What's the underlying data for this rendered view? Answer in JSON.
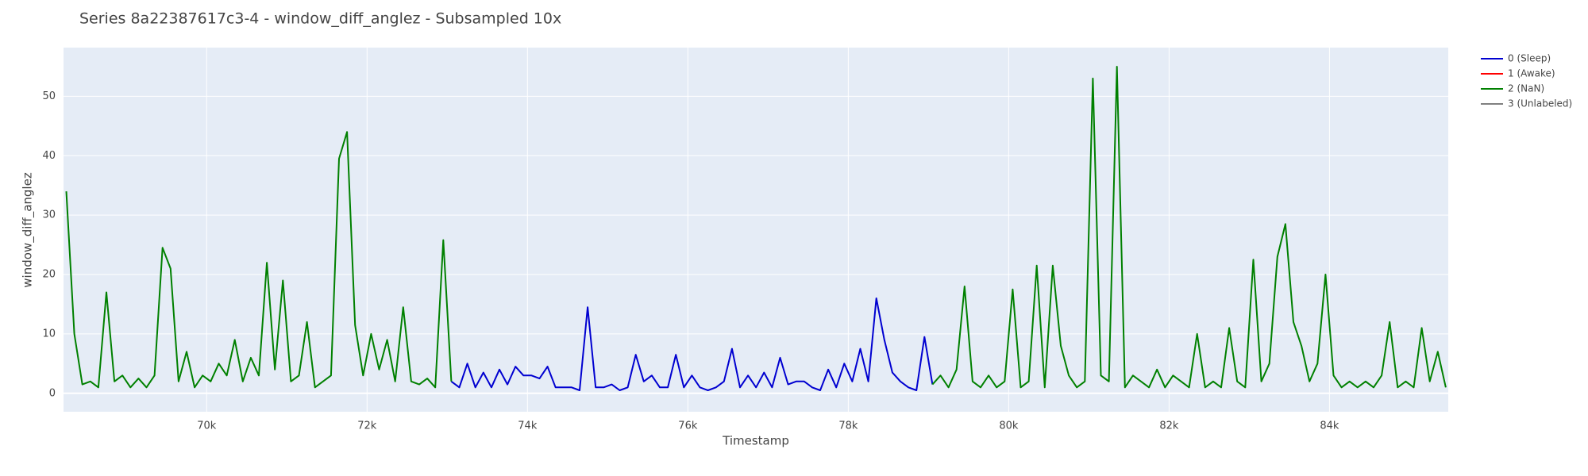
{
  "chart_data": {
    "type": "line",
    "title": "Series 8a22387617c3-4 - window_diff_anglez - Subsampled 10x",
    "x_label": "Timestamp",
    "y_label": "window_diff_anglez",
    "xlim": [
      68215,
      85481
    ],
    "ylim": [
      -3.1,
      58.2
    ],
    "xticks": [
      {
        "value": 70000,
        "label": "70k"
      },
      {
        "value": 72000,
        "label": "72k"
      },
      {
        "value": 74000,
        "label": "74k"
      },
      {
        "value": 76000,
        "label": "76k"
      },
      {
        "value": 78000,
        "label": "78k"
      },
      {
        "value": 80000,
        "label": "80k"
      },
      {
        "value": 82000,
        "label": "82k"
      },
      {
        "value": 84000,
        "label": "84k"
      }
    ],
    "yticks": [
      0,
      10,
      20,
      30,
      40,
      50
    ],
    "grid": true,
    "legend": "right",
    "x": [
      68250,
      68350,
      68450,
      68550,
      68650,
      68750,
      68850,
      68950,
      69050,
      69150,
      69250,
      69350,
      69450,
      69550,
      69650,
      69750,
      69850,
      69950,
      70050,
      70150,
      70250,
      70350,
      70450,
      70550,
      70650,
      70750,
      70850,
      70950,
      71050,
      71150,
      71250,
      71350,
      71450,
      71550,
      71650,
      71750,
      71850,
      71950,
      72050,
      72150,
      72250,
      72350,
      72450,
      72550,
      72650,
      72750,
      72850,
      72950,
      73050,
      73150,
      73250,
      73350,
      73450,
      73550,
      73650,
      73750,
      73850,
      73950,
      74050,
      74150,
      74250,
      74350,
      74450,
      74550,
      74650,
      74750,
      74850,
      74950,
      75050,
      75150,
      75250,
      75350,
      75450,
      75550,
      75650,
      75750,
      75850,
      75950,
      76050,
      76150,
      76250,
      76350,
      76450,
      76550,
      76650,
      76750,
      76850,
      76950,
      77050,
      77150,
      77250,
      77350,
      77450,
      77550,
      77650,
      77750,
      77850,
      77950,
      78050,
      78150,
      78250,
      78350,
      78450,
      78550,
      78650,
      78750,
      78850,
      78950,
      79050,
      79150,
      79250,
      79350,
      79450,
      79550,
      79650,
      79750,
      79850,
      79950,
      80050,
      80150,
      80250,
      80350,
      80450,
      80550,
      80650,
      80750,
      80850,
      80950,
      81050,
      81150,
      81250,
      81350,
      81450,
      81550,
      81650,
      81750,
      81850,
      81950,
      82050,
      82150,
      82250,
      82350,
      82450,
      82550,
      82650,
      82750,
      82850,
      82950,
      83050,
      83150,
      83250,
      83350,
      83450,
      83550,
      83650,
      83750,
      83850,
      83950,
      84050,
      84150,
      84250,
      84350,
      84450,
      84550,
      84650,
      84750,
      84850,
      84950,
      85050,
      85150,
      85250,
      85350,
      85450
    ],
    "series": [
      {
        "name": "0 (Sleep)",
        "color": "#0000d0",
        "values": [
          null,
          null,
          null,
          null,
          null,
          null,
          null,
          null,
          null,
          null,
          null,
          null,
          null,
          null,
          null,
          null,
          null,
          null,
          null,
          null,
          null,
          null,
          null,
          null,
          null,
          null,
          null,
          null,
          null,
          null,
          null,
          null,
          null,
          null,
          null,
          null,
          null,
          null,
          null,
          null,
          null,
          null,
          null,
          null,
          null,
          null,
          null,
          null,
          2,
          1,
          5,
          1,
          3.5,
          1,
          4,
          1.5,
          4.5,
          3,
          3,
          2.5,
          4.5,
          1,
          1,
          1,
          0.5,
          14.5,
          1,
          1,
          1.5,
          0.5,
          1,
          6.5,
          2,
          3,
          1,
          1,
          6.5,
          1,
          3,
          1,
          0.5,
          1,
          2,
          7.5,
          1,
          3,
          1,
          3.5,
          1,
          6,
          1.5,
          2,
          2,
          1,
          0.5,
          4,
          1,
          5,
          2,
          7.5,
          2,
          16,
          9,
          3.5,
          2,
          1,
          0.5,
          9.5,
          1.5,
          null,
          null,
          null,
          null,
          null,
          null,
          null,
          null,
          null,
          null,
          null,
          null,
          null,
          null,
          null,
          null,
          null,
          null,
          null,
          null,
          null,
          null,
          null,
          null,
          null,
          null,
          null,
          null,
          null,
          null,
          null,
          null,
          null,
          null,
          null,
          null,
          null,
          null,
          null,
          null,
          null,
          null,
          null,
          null,
          null,
          null,
          null,
          null,
          null,
          null,
          null,
          null,
          null,
          null,
          null,
          null,
          null,
          null,
          null,
          null,
          null,
          null,
          null,
          null
        ]
      },
      {
        "name": "1 (Awake)",
        "color": "#ff0000",
        "values": [
          null,
          null,
          null,
          null,
          null,
          null,
          null,
          null,
          null,
          null,
          null,
          null,
          null,
          null,
          null,
          null,
          null,
          null,
          null,
          null,
          null,
          null,
          null,
          null,
          null,
          null,
          null,
          null,
          null,
          null,
          null,
          null,
          null,
          null,
          null,
          null,
          null,
          null,
          null,
          null,
          null,
          null,
          null,
          null,
          null,
          null,
          null,
          null,
          null,
          null,
          null,
          null,
          null,
          null,
          null,
          null,
          null,
          null,
          null,
          null,
          null,
          null,
          null,
          null,
          null,
          null,
          null,
          null,
          null,
          null,
          null,
          null,
          null,
          null,
          null,
          null,
          null,
          null,
          null,
          null,
          null,
          null,
          null,
          null,
          null,
          null,
          null,
          null,
          null,
          null,
          null,
          null,
          null,
          null,
          null,
          null,
          null,
          null,
          null,
          null,
          null,
          null,
          null,
          null,
          null,
          null,
          null,
          null,
          null,
          null,
          null,
          null,
          null,
          null,
          null,
          null,
          null,
          null,
          null,
          null,
          null,
          null,
          null,
          null,
          null,
          null,
          null,
          null,
          null,
          null,
          null,
          null,
          null,
          null,
          null,
          null,
          null,
          null,
          null,
          null,
          null,
          null,
          null,
          null,
          null,
          null,
          null,
          null,
          null,
          null,
          null,
          null,
          null,
          null,
          null,
          null,
          null,
          null,
          null,
          null,
          null,
          null,
          null,
          null,
          null,
          null,
          null,
          null,
          null,
          null,
          null,
          null,
          null
        ]
      },
      {
        "name": "2 (NaN)",
        "color": "#008000",
        "values": [
          34,
          10,
          1.5,
          2,
          1,
          17,
          2,
          3,
          1,
          2.5,
          1,
          3,
          24.5,
          21,
          2,
          7,
          1,
          3,
          2,
          5,
          3,
          9,
          2,
          6,
          3,
          22,
          4,
          19,
          2,
          3,
          12,
          1,
          2,
          3,
          39.5,
          44,
          11.5,
          3,
          10,
          4,
          9,
          2,
          14.5,
          2,
          1.5,
          2.5,
          1,
          25.8,
          2,
          null,
          null,
          null,
          null,
          null,
          null,
          null,
          null,
          null,
          null,
          null,
          null,
          null,
          null,
          null,
          null,
          null,
          null,
          null,
          null,
          null,
          null,
          null,
          null,
          null,
          null,
          null,
          null,
          null,
          null,
          null,
          null,
          null,
          null,
          null,
          null,
          null,
          null,
          null,
          null,
          null,
          null,
          null,
          null,
          null,
          null,
          null,
          null,
          null,
          null,
          null,
          null,
          null,
          null,
          null,
          null,
          null,
          null,
          null,
          1.5,
          3,
          1,
          4,
          18,
          2,
          1,
          3,
          1,
          2,
          17.5,
          1,
          2,
          21.5,
          1,
          21.5,
          8,
          3,
          1,
          2,
          53,
          3,
          2,
          55,
          1,
          3,
          2,
          1,
          4,
          1,
          3,
          2,
          1,
          10,
          1,
          2,
          1,
          11,
          2,
          1,
          22.5,
          2,
          5,
          23,
          28.5,
          12,
          8,
          2,
          5,
          20,
          3,
          1,
          2,
          1,
          2,
          1,
          3,
          12,
          1,
          2,
          1,
          11,
          2,
          7,
          1
        ]
      },
      {
        "name": "3 (Unlabeled)",
        "color": "#808080",
        "values": [
          null,
          null,
          null,
          null,
          null,
          null,
          null,
          null,
          null,
          null,
          null,
          null,
          null,
          null,
          null,
          null,
          null,
          null,
          null,
          null,
          null,
          null,
          null,
          null,
          null,
          null,
          null,
          null,
          null,
          null,
          null,
          null,
          null,
          null,
          null,
          null,
          null,
          null,
          null,
          null,
          null,
          null,
          null,
          null,
          null,
          null,
          null,
          null,
          null,
          null,
          null,
          null,
          null,
          null,
          null,
          null,
          null,
          null,
          null,
          null,
          null,
          null,
          null,
          null,
          null,
          null,
          null,
          null,
          null,
          null,
          null,
          null,
          null,
          null,
          null,
          null,
          null,
          null,
          null,
          null,
          null,
          null,
          null,
          null,
          null,
          null,
          null,
          null,
          null,
          null,
          null,
          null,
          null,
          null,
          null,
          null,
          null,
          null,
          null,
          null,
          null,
          null,
          null,
          null,
          null,
          null,
          null,
          null,
          null,
          null,
          null,
          null,
          null,
          null,
          null,
          null,
          null,
          null,
          null,
          null,
          null,
          null,
          null,
          null,
          null,
          null,
          null,
          null,
          null,
          null,
          null,
          null,
          null,
          null,
          null,
          null,
          null,
          null,
          null,
          null,
          null,
          null,
          null,
          null,
          null,
          null,
          null,
          null,
          null,
          null,
          null,
          null,
          null,
          null,
          null,
          null,
          null,
          null,
          null,
          null,
          null,
          null,
          null,
          null,
          null,
          null,
          null,
          null,
          null,
          null,
          null,
          null,
          null
        ]
      }
    ]
  }
}
